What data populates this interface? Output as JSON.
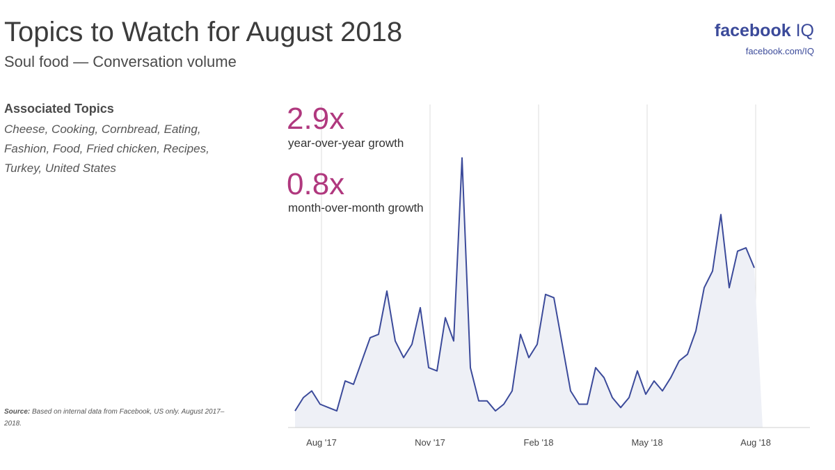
{
  "header": {
    "title": "Topics to Watch for August 2018",
    "subtitle": "Soul food — Conversation volume"
  },
  "brand": {
    "name": "facebook",
    "suffix": "IQ",
    "url": "facebook.com/IQ"
  },
  "associated": {
    "heading": "Associated Topics",
    "topics": "Cheese, Cooking, Cornbread, Eating, Fashion, Food, Fried chicken, Recipes, Turkey, United States"
  },
  "stats": {
    "yoy_value": "2.9x",
    "yoy_label": "year-over-year growth",
    "mom_value": "0.8x",
    "mom_label": "month-over-month growth"
  },
  "source": {
    "label": "Source:",
    "text": "Based on internal data from Facebook, US only. August 2017–2018."
  },
  "colors": {
    "line": "#3b4a9a",
    "fill": "#eef0f6",
    "accent": "#b0387e",
    "brand": "#3b4a9a",
    "grid": "#dcdcdc"
  },
  "chart_data": {
    "type": "area",
    "title": "",
    "xlabel": "",
    "ylabel": "",
    "grid": "vertical",
    "ylim": [
      0,
      100
    ],
    "x_ticks": [
      "Aug '17",
      "Nov '17",
      "Feb '18",
      "May '18",
      "Aug '18"
    ],
    "series": [
      {
        "values": [
          5,
          9,
          11,
          7,
          6,
          5,
          14,
          13,
          20,
          27,
          28,
          41,
          26,
          21,
          25,
          36,
          18,
          17,
          33,
          26,
          81,
          18,
          8,
          8,
          5,
          7,
          11,
          28,
          21,
          25,
          40,
          39,
          25,
          11,
          7,
          7,
          18,
          15,
          9,
          6,
          9,
          17,
          10,
          14,
          11,
          15,
          20,
          22,
          29,
          42,
          47,
          64,
          42,
          53,
          54,
          48,
          0
        ]
      }
    ]
  }
}
